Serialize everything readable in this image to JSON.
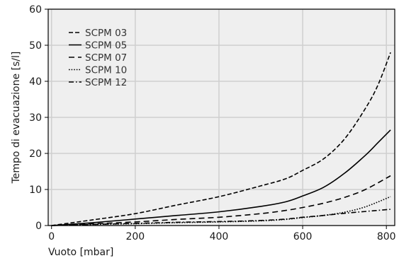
{
  "chart_data": {
    "type": "line",
    "xlabel": "Vuoto [mbar]",
    "ylabel": "Tempo di evacuazione [s/l]",
    "xlim": [
      -8,
      820
    ],
    "ylim": [
      0,
      60
    ],
    "xticks": [
      0,
      200,
      400,
      600,
      800
    ],
    "yticks": [
      0,
      10,
      20,
      30,
      40,
      50,
      60
    ],
    "grid": true,
    "legend_position": "top-left",
    "colors": {
      "background": "#efefef",
      "grid": "#cfcfcf",
      "line": "#000000"
    },
    "series": [
      {
        "name": "SCPM 03",
        "dash": "dashed",
        "x": [
          0,
          100,
          200,
          300,
          400,
          500,
          560,
          600,
          650,
          700,
          750,
          780,
          810
        ],
        "y": [
          0,
          1.6,
          3.3,
          5.7,
          8.0,
          11.0,
          13.0,
          15.3,
          18.5,
          24.0,
          32.5,
          39.0,
          48.0
        ]
      },
      {
        "name": "SCPM 05",
        "dash": "solid",
        "x": [
          0,
          100,
          200,
          300,
          400,
          500,
          560,
          600,
          650,
          700,
          750,
          780,
          810
        ],
        "y": [
          0,
          0.8,
          1.8,
          2.8,
          3.8,
          5.3,
          6.6,
          8.2,
          10.6,
          14.5,
          19.5,
          23.0,
          26.5
        ]
      },
      {
        "name": "SCPM 07",
        "dash": "dashed-long",
        "x": [
          0,
          100,
          200,
          300,
          400,
          500,
          560,
          600,
          650,
          700,
          750,
          810
        ],
        "y": [
          0,
          0.5,
          1.0,
          1.7,
          2.3,
          3.3,
          4.2,
          5.0,
          6.2,
          7.8,
          10.0,
          13.8
        ]
      },
      {
        "name": "SCPM 10",
        "dash": "dotted",
        "x": [
          0,
          100,
          200,
          300,
          400,
          500,
          560,
          600,
          650,
          700,
          750,
          810
        ],
        "y": [
          0,
          0.3,
          0.5,
          0.8,
          1.0,
          1.3,
          1.7,
          2.2,
          2.8,
          3.7,
          5.2,
          8.0
        ]
      },
      {
        "name": "SCPM 12",
        "dash": "dash-dot",
        "x": [
          0,
          100,
          200,
          300,
          400,
          500,
          560,
          600,
          650,
          700,
          750,
          810
        ],
        "y": [
          0,
          0.3,
          0.6,
          0.9,
          1.1,
          1.4,
          1.8,
          2.3,
          2.8,
          3.4,
          3.9,
          4.5
        ]
      }
    ]
  }
}
